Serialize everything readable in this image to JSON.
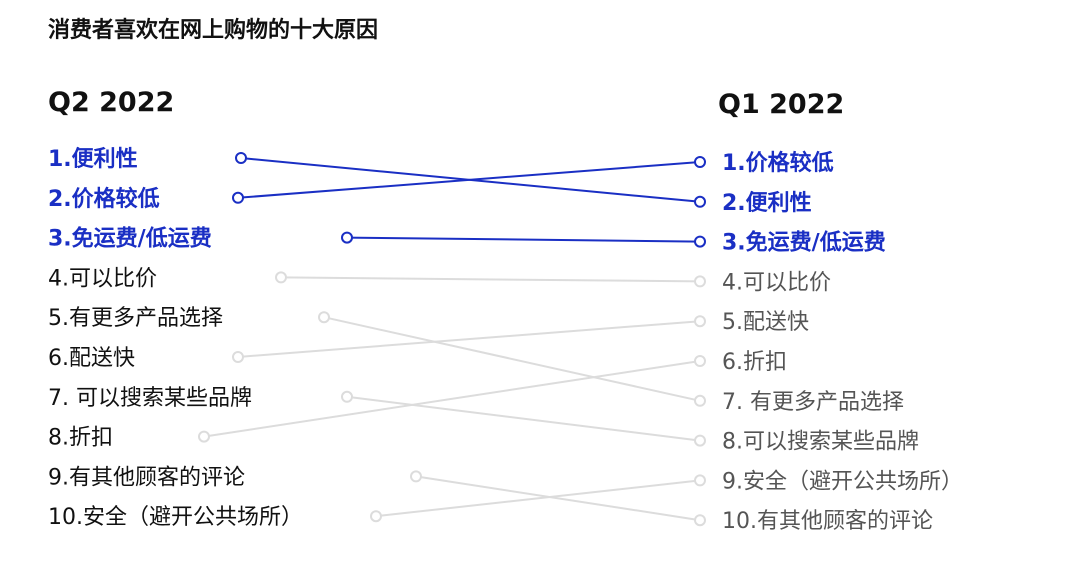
{
  "chart_data": {
    "type": "slope",
    "title": "消费者喜欢在网上购物的十大原因",
    "left_header": "Q2 2022",
    "right_header": "Q1 2022",
    "left_labels": [
      "1.便利性",
      "2.价格较低",
      "3.免运费/低运费",
      "4.可以比价",
      "5.有更多产品选择",
      "6.配送快",
      "7. 可以搜索某些品牌",
      "8.折扣",
      "9.有其他顾客的评论",
      "10.安全（避开公共场所）"
    ],
    "right_labels": [
      "1.价格较低",
      "2.便利性",
      "3.免运费/低运费",
      "4.可以比价",
      "5.配送快",
      "6.折扣",
      "7. 有更多产品选择",
      "8.可以搜索某些品牌",
      "9.安全（避开公共场所）",
      "10.有其他顾客的评论"
    ],
    "links": [
      {
        "left_rank": 1,
        "right_rank": 2,
        "highlight": true
      },
      {
        "left_rank": 2,
        "right_rank": 1,
        "highlight": true
      },
      {
        "left_rank": 3,
        "right_rank": 3,
        "highlight": true
      },
      {
        "left_rank": 4,
        "right_rank": 4,
        "highlight": false
      },
      {
        "left_rank": 5,
        "right_rank": 7,
        "highlight": false
      },
      {
        "left_rank": 6,
        "right_rank": 5,
        "highlight": false
      },
      {
        "left_rank": 7,
        "right_rank": 8,
        "highlight": false
      },
      {
        "left_rank": 8,
        "right_rank": 6,
        "highlight": false
      },
      {
        "left_rank": 9,
        "right_rank": 10,
        "highlight": false
      },
      {
        "left_rank": 10,
        "right_rank": 9,
        "highlight": false
      }
    ],
    "colors": {
      "highlight": "#1a2fc4",
      "muted_line": "#dcdcdc",
      "muted_text_left": "#111111",
      "muted_text_right": "#555555"
    }
  }
}
